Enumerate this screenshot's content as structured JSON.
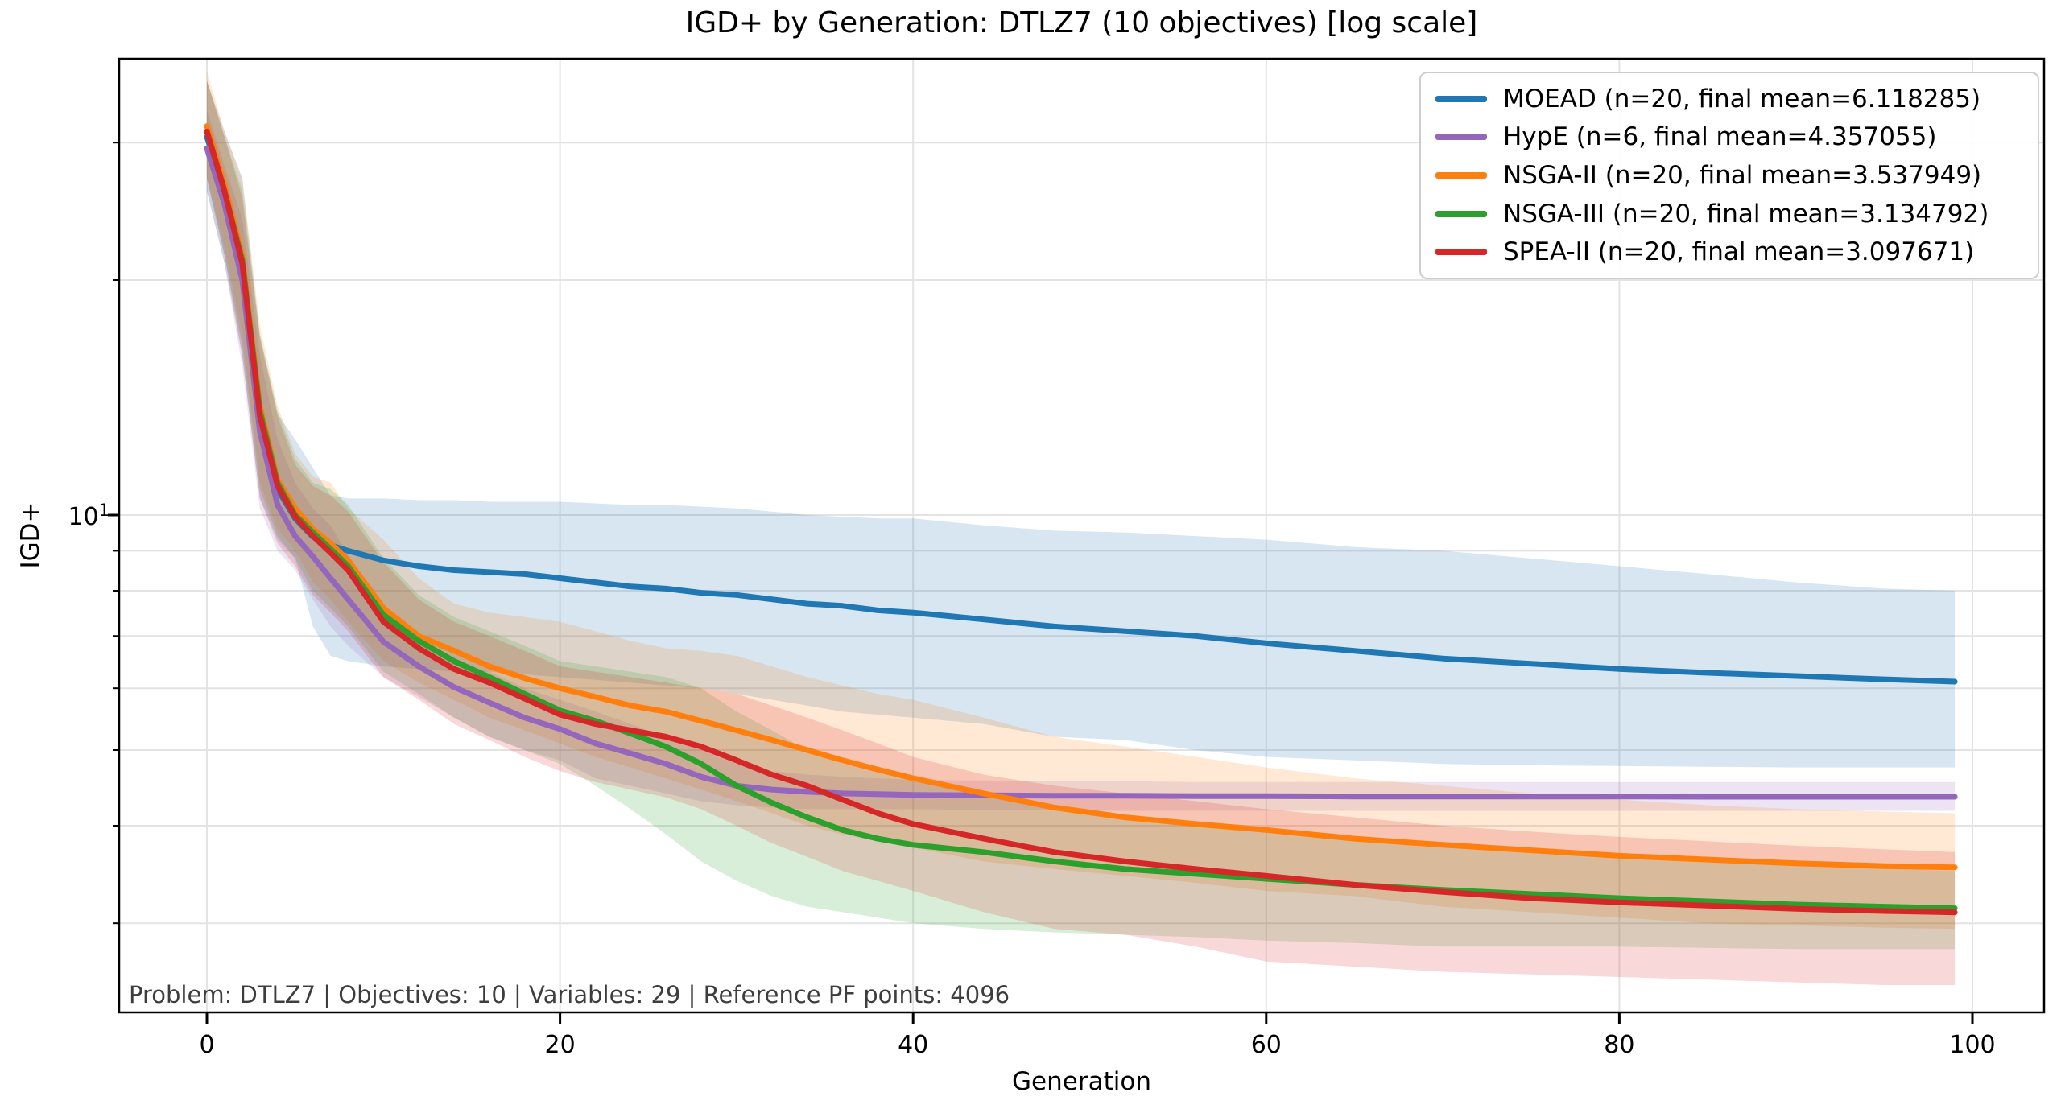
{
  "chart_data": {
    "type": "line",
    "title": "IGD+ by Generation: DTLZ7 (10 objectives) [log scale]",
    "xlabel": "Generation",
    "ylabel": "IGD+",
    "yscale": "log",
    "grid": true,
    "legend_position": "upper right",
    "annotation": "Problem: DTLZ7 | Objectives: 10 | Variables: 29 | Reference PF points: 4096",
    "x_ticks": [
      0,
      20,
      40,
      60,
      80,
      100
    ],
    "y_tick_label": {
      "value": 10,
      "base": "10",
      "exp": "1"
    },
    "y_major_gridlines": [
      10
    ],
    "y_minor_gridlines": [
      30,
      20,
      9,
      8,
      7,
      6,
      5,
      4,
      3
    ],
    "xlim": [
      -4.95,
      103.95
    ],
    "ylim": [
      2.31,
      38.5
    ],
    "x": [
      0,
      1,
      2,
      3,
      4,
      5,
      6,
      7,
      8,
      10,
      12,
      14,
      16,
      18,
      20,
      22,
      24,
      26,
      28,
      30,
      32,
      34,
      36,
      38,
      40,
      44,
      48,
      52,
      56,
      60,
      65,
      70,
      75,
      80,
      85,
      90,
      95,
      99
    ],
    "series": [
      {
        "name": "MOEAD",
        "label": "MOEAD (n=20, final mean=6.118285)",
        "color": "#1f77b4",
        "n": 20,
        "final_mean": 6.118285,
        "mean": [
          30.5,
          26,
          21,
          13.5,
          10.8,
          9.9,
          9.38,
          9.15,
          9.0,
          8.75,
          8.6,
          8.5,
          8.45,
          8.4,
          8.3,
          8.2,
          8.1,
          8.05,
          7.95,
          7.9,
          7.8,
          7.7,
          7.65,
          7.55,
          7.5,
          7.35,
          7.2,
          7.1,
          7.0,
          6.85,
          6.7,
          6.55,
          6.45,
          6.35,
          6.28,
          6.22,
          6.16,
          6.118
        ],
        "band_low": [
          26,
          21,
          16,
          10.5,
          9.3,
          8.8,
          7.2,
          6.6,
          6.5,
          6.4,
          6.35,
          6.3,
          6.3,
          6.25,
          6.2,
          6.15,
          6.1,
          6.05,
          6.0,
          5.9,
          5.8,
          5.7,
          5.6,
          5.55,
          5.5,
          5.4,
          5.2,
          5.15,
          5.0,
          4.9,
          4.85,
          4.8,
          4.78,
          4.77,
          4.76,
          4.75,
          4.75,
          4.75
        ],
        "band_high": [
          36,
          31,
          27,
          17,
          13.5,
          12.5,
          11.5,
          10.6,
          10.5,
          10.5,
          10.45,
          10.45,
          10.4,
          10.4,
          10.4,
          10.35,
          10.3,
          10.3,
          10.25,
          10.2,
          10.1,
          10.0,
          9.95,
          9.9,
          9.9,
          9.7,
          9.55,
          9.5,
          9.4,
          9.3,
          9.1,
          9.0,
          8.8,
          8.6,
          8.4,
          8.2,
          8.05,
          8.0
        ]
      },
      {
        "name": "HypE",
        "label": "HypE (n=6, final mean=4.357055)",
        "color": "#9467bd",
        "n": 6,
        "final_mean": 4.357055,
        "mean": [
          29.5,
          25,
          20,
          12.8,
          10.3,
          9.4,
          8.85,
          8.3,
          7.8,
          6.88,
          6.4,
          6.02,
          5.75,
          5.5,
          5.32,
          5.1,
          4.95,
          4.8,
          4.62,
          4.5,
          4.45,
          4.42,
          4.4,
          4.39,
          4.38,
          4.375,
          4.37,
          4.37,
          4.365,
          4.365,
          4.36,
          4.36,
          4.36,
          4.36,
          4.357,
          4.357,
          4.357,
          4.357
        ],
        "band_low": [
          26,
          21,
          15.5,
          10.2,
          9.0,
          8.5,
          7.8,
          7.2,
          6.8,
          6.2,
          5.85,
          5.5,
          5.2,
          5.0,
          4.85,
          4.6,
          4.5,
          4.4,
          4.3,
          4.25,
          4.22,
          4.2,
          4.2,
          4.2,
          4.2,
          4.19,
          4.19,
          4.18,
          4.18,
          4.18,
          4.18,
          4.18,
          4.18,
          4.18,
          4.18,
          4.18,
          4.18,
          4.18
        ],
        "band_high": [
          33,
          28,
          24,
          16,
          12.5,
          11.0,
          10.2,
          9.7,
          8.9,
          7.6,
          6.9,
          6.5,
          6.3,
          6.0,
          5.8,
          5.6,
          5.4,
          5.2,
          5.0,
          4.8,
          4.7,
          4.65,
          4.62,
          4.6,
          4.58,
          4.57,
          4.56,
          4.56,
          4.55,
          4.55,
          4.55,
          4.55,
          4.55,
          4.55,
          4.55,
          4.55,
          4.55,
          4.55
        ]
      },
      {
        "name": "NSGA-II",
        "label": "NSGA-II (n=20, final mean=3.537949)",
        "color": "#ff7f0e",
        "n": 20,
        "final_mean": 3.537949,
        "mean": [
          31.5,
          26.5,
          21.5,
          13.8,
          11.1,
          10.2,
          9.6,
          9.2,
          8.75,
          7.6,
          7.0,
          6.7,
          6.4,
          6.18,
          6.0,
          5.85,
          5.7,
          5.6,
          5.45,
          5.3,
          5.15,
          5.0,
          4.85,
          4.72,
          4.6,
          4.4,
          4.22,
          4.1,
          4.02,
          3.95,
          3.85,
          3.78,
          3.72,
          3.66,
          3.62,
          3.58,
          3.55,
          3.538
        ],
        "band_low": [
          27,
          22,
          17,
          11,
          9.6,
          9.0,
          8.2,
          7.8,
          7.3,
          6.5,
          6.1,
          5.8,
          5.5,
          5.3,
          5.1,
          4.9,
          4.75,
          4.6,
          4.45,
          4.3,
          4.15,
          4.0,
          3.9,
          3.82,
          3.75,
          3.6,
          3.52,
          3.45,
          3.38,
          3.3,
          3.25,
          3.15,
          3.1,
          3.05,
          3.0,
          2.98,
          2.96,
          2.95
        ],
        "band_high": [
          37,
          31,
          27,
          17.5,
          13.8,
          12.0,
          11.2,
          11.0,
          10.2,
          9.3,
          8.3,
          7.7,
          7.5,
          7.4,
          7.3,
          7.1,
          6.9,
          6.75,
          6.7,
          6.6,
          6.4,
          6.2,
          6.05,
          5.9,
          5.8,
          5.5,
          5.2,
          5.05,
          4.9,
          4.75,
          4.6,
          4.5,
          4.4,
          4.32,
          4.25,
          4.2,
          4.17,
          4.15
        ]
      },
      {
        "name": "NSGA-III",
        "label": "NSGA-III (n=20, final mean=3.134792)",
        "color": "#2ca02c",
        "n": 20,
        "final_mean": 3.134792,
        "mean": [
          31,
          26,
          21.2,
          13.6,
          11.0,
          10.0,
          9.5,
          9.05,
          8.6,
          7.45,
          6.9,
          6.5,
          6.2,
          5.9,
          5.62,
          5.45,
          5.25,
          5.05,
          4.8,
          4.5,
          4.28,
          4.1,
          3.95,
          3.85,
          3.78,
          3.7,
          3.6,
          3.52,
          3.47,
          3.42,
          3.36,
          3.31,
          3.27,
          3.23,
          3.2,
          3.17,
          3.15,
          3.135
        ],
        "band_low": [
          27,
          21.5,
          16.5,
          10.8,
          9.4,
          8.8,
          8.0,
          7.6,
          7.2,
          6.3,
          5.9,
          5.5,
          5.2,
          5.0,
          4.8,
          4.5,
          4.2,
          3.9,
          3.6,
          3.4,
          3.25,
          3.15,
          3.1,
          3.05,
          3.0,
          2.95,
          2.92,
          2.9,
          2.88,
          2.85,
          2.83,
          2.8,
          2.8,
          2.8,
          2.79,
          2.78,
          2.78,
          2.78
        ],
        "band_high": [
          36,
          30.5,
          26,
          17,
          13.6,
          11.8,
          11.0,
          10.8,
          10.3,
          8.8,
          7.9,
          7.4,
          7.1,
          6.8,
          6.5,
          6.4,
          6.3,
          6.2,
          6.0,
          5.6,
          5.3,
          5.0,
          4.8,
          4.7,
          4.6,
          4.4,
          4.25,
          4.1,
          4.0,
          3.95,
          3.88,
          3.8,
          3.72,
          3.65,
          3.6,
          3.56,
          3.53,
          3.5
        ]
      },
      {
        "name": "SPEA-II",
        "label": "SPEA-II (n=20, final mean=3.097671)",
        "color": "#d62728",
        "n": 20,
        "final_mean": 3.097671,
        "mean": [
          31,
          26,
          21.0,
          13.4,
          10.9,
          9.95,
          9.4,
          8.95,
          8.5,
          7.3,
          6.75,
          6.35,
          6.1,
          5.82,
          5.55,
          5.4,
          5.3,
          5.2,
          5.05,
          4.85,
          4.65,
          4.5,
          4.32,
          4.15,
          4.02,
          3.85,
          3.7,
          3.6,
          3.52,
          3.45,
          3.36,
          3.29,
          3.23,
          3.19,
          3.16,
          3.13,
          3.11,
          3.098
        ],
        "band_low": [
          27,
          21.5,
          16,
          10.5,
          9.2,
          8.6,
          7.9,
          7.5,
          7.1,
          6.2,
          5.8,
          5.4,
          5.15,
          4.9,
          4.7,
          4.55,
          4.45,
          4.35,
          4.2,
          4.0,
          3.8,
          3.65,
          3.5,
          3.4,
          3.3,
          3.1,
          2.95,
          2.9,
          2.8,
          2.68,
          2.64,
          2.6,
          2.58,
          2.56,
          2.54,
          2.52,
          2.5,
          2.5
        ],
        "band_high": [
          36,
          30.5,
          25.5,
          16.8,
          13.4,
          11.6,
          10.9,
          10.6,
          10.1,
          8.7,
          7.8,
          7.3,
          7.0,
          6.7,
          6.4,
          6.3,
          6.2,
          6.1,
          6.0,
          5.9,
          5.7,
          5.5,
          5.3,
          5.1,
          4.9,
          4.65,
          4.5,
          4.4,
          4.3,
          4.2,
          4.1,
          4.0,
          3.93,
          3.87,
          3.82,
          3.77,
          3.73,
          3.7
        ]
      }
    ],
    "style": {
      "grid_color": "#e3e3e3",
      "frame_color": "#000000",
      "band_opacity": 0.18,
      "line_width": 7
    }
  }
}
